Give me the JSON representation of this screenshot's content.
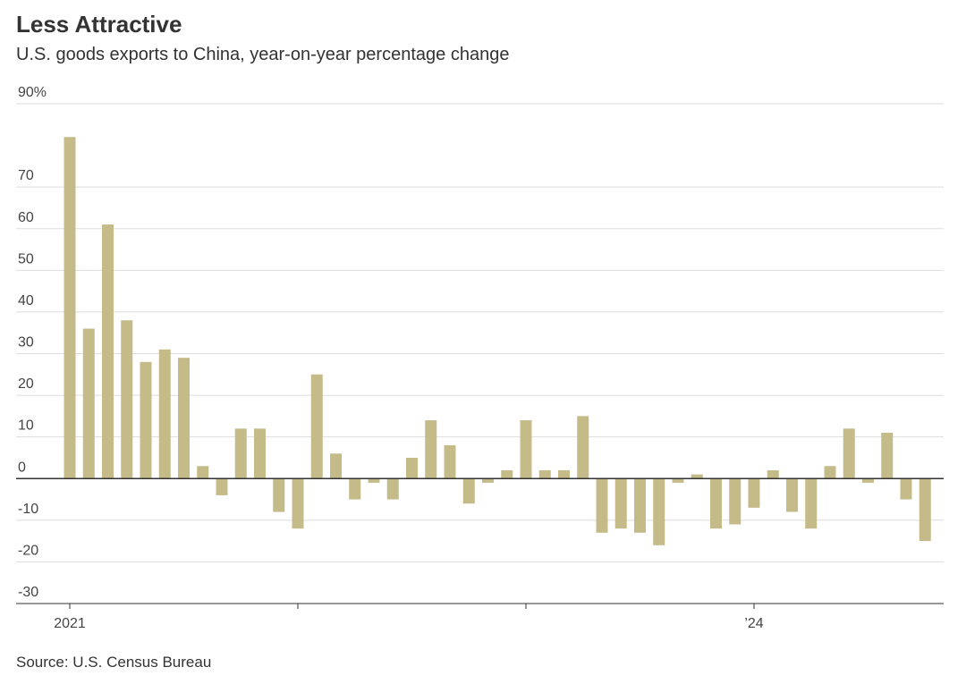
{
  "chart_data": {
    "type": "bar",
    "title": "Less Attractive",
    "subtitle": "U.S. goods exports to China, year-on-year percentage change",
    "source": "Source: U.S. Census Bureau",
    "categories": [
      "2021",
      null,
      null,
      null,
      null,
      null,
      null,
      null,
      null,
      null,
      null,
      null,
      null,
      null,
      null,
      null,
      null,
      null,
      null,
      null,
      null,
      null,
      null,
      null,
      null,
      null,
      null,
      null,
      null,
      null,
      null,
      null,
      null,
      null,
      null,
      null,
      "’24",
      null,
      null,
      null,
      null,
      null,
      null,
      null,
      null,
      null
    ],
    "values": [
      82,
      36,
      61,
      38,
      28,
      31,
      29,
      3,
      -4,
      12,
      12,
      -8,
      -12,
      25,
      6,
      -5,
      -1,
      -5,
      5,
      14,
      8,
      -6,
      -1,
      2,
      14,
      2,
      2,
      15,
      -13,
      -12,
      -13,
      -16,
      -1,
      1,
      -12,
      -11,
      -7,
      2,
      -8,
      -12,
      3,
      12,
      -1,
      11,
      -5,
      -15
    ],
    "color": "#c4bb89",
    "ylim": [
      -30,
      90
    ],
    "yticks": [
      -30,
      -20,
      -10,
      0,
      10,
      20,
      30,
      40,
      50,
      60,
      70,
      {
        "value": 90,
        "label": "90%"
      }
    ],
    "grid": true
  }
}
